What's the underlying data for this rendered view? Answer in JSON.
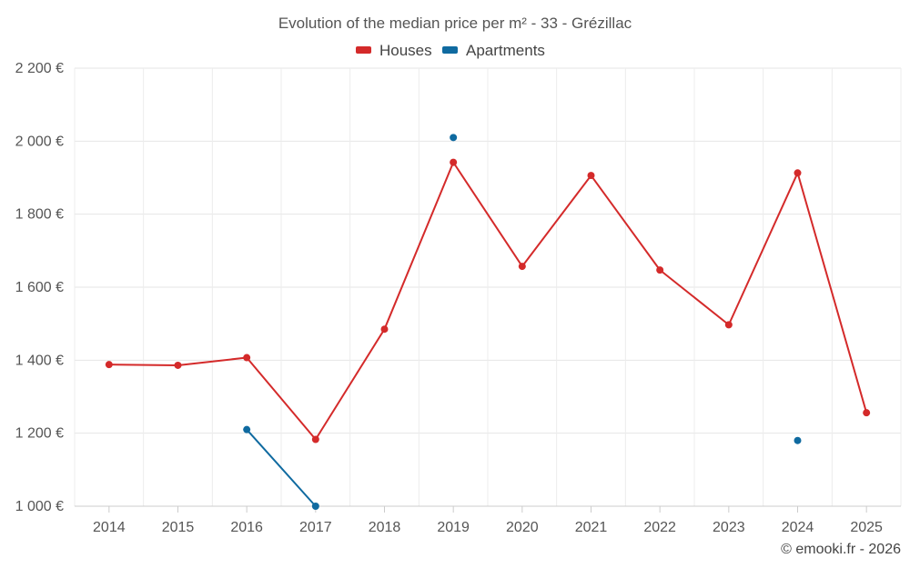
{
  "chart_data": {
    "type": "line",
    "title": "Evolution of the median price per m² - 33 - Grézillac",
    "categories": [
      "2014",
      "2015",
      "2016",
      "2017",
      "2018",
      "2019",
      "2020",
      "2021",
      "2022",
      "2023",
      "2024",
      "2025"
    ],
    "ylim": [
      1000,
      2200
    ],
    "yticks": [
      1000,
      1200,
      1400,
      1600,
      1800,
      2000,
      2200
    ],
    "ytick_labels": [
      "1 000 €",
      "1 200 €",
      "1 400 €",
      "1 600 €",
      "1 800 €",
      "2 000 €",
      "2 200 €"
    ],
    "series": [
      {
        "name": "Houses",
        "color": "#d42a2a",
        "values": [
          1388,
          1386,
          1407,
          1183,
          1485,
          1942,
          1657,
          1906,
          1647,
          1497,
          1913,
          1256
        ]
      },
      {
        "name": "Apartments",
        "color": "#0f6aa0",
        "values": [
          null,
          null,
          1210,
          1000,
          null,
          2010,
          null,
          null,
          null,
          null,
          1180,
          null
        ]
      }
    ],
    "grid": true,
    "legend_position": "top-center"
  },
  "credit": "© emooki.fr - 2026"
}
